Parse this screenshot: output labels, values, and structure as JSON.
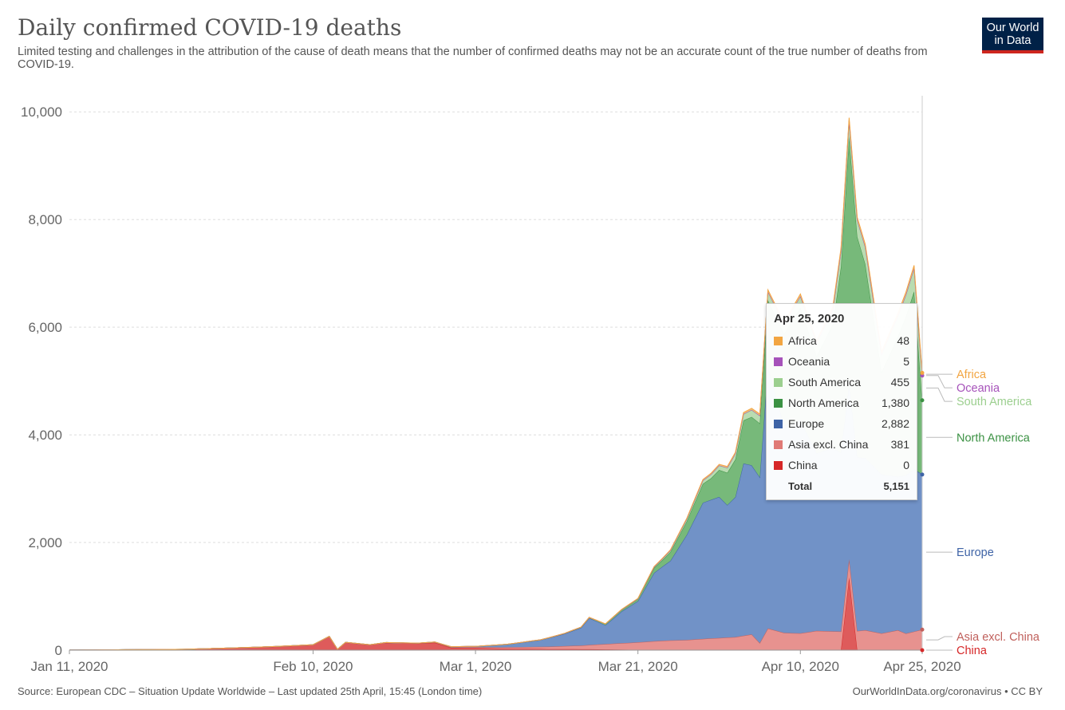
{
  "header": {
    "title": "Daily confirmed COVID-19 deaths",
    "subtitle": "Limited testing and challenges in the attribution of the cause of death means that the number of confirmed deaths may not be an accurate count of the true number of deaths from COVID-19.",
    "logo_line1": "Our World",
    "logo_line2": "in Data"
  },
  "footer": {
    "source": "Source: European CDC – Situation Update Worldwide – Last updated 25th April, 15:45 (London time)",
    "link": "OurWorldInData.org/coronavirus • CC BY"
  },
  "tooltip": {
    "date": "Apr 25, 2020",
    "rows": [
      {
        "name": "Africa",
        "value": "48",
        "color": "#f2a541"
      },
      {
        "name": "Oceania",
        "value": "5",
        "color": "#a652ba"
      },
      {
        "name": "South America",
        "value": "455",
        "color": "#9ccf8f"
      },
      {
        "name": "North America",
        "value": "1,380",
        "color": "#3b9143"
      },
      {
        "name": "Europe",
        "value": "2,882",
        "color": "#3e63a6"
      },
      {
        "name": "Asia excl. China",
        "value": "381",
        "color": "#e07a76"
      },
      {
        "name": "China",
        "value": "0",
        "color": "#d62728"
      }
    ],
    "total_label": "Total",
    "total_value": "5,151"
  },
  "chart_data": {
    "type": "area",
    "stacked": true,
    "title": "Daily confirmed COVID-19 deaths",
    "subtitle": "Limited testing and challenges in the attribution of the cause of death means that the number of confirmed deaths may not be an accurate count of the true number of deaths from COVID-19.",
    "x_start": "2020-01-11",
    "x_end": "2020-04-25",
    "x_ticks": [
      "Jan 11, 2020",
      "Feb 10, 2020",
      "Mar 1, 2020",
      "Mar 21, 2020",
      "Apr 10, 2020",
      "Apr 25, 2020"
    ],
    "y_ticks": [
      "0",
      "2,000",
      "4,000",
      "6,000",
      "8,000",
      "10,000"
    ],
    "ylim": [
      0,
      10300
    ],
    "grid": true,
    "legend": "right (labels at series ends)",
    "series": [
      {
        "name": "China",
        "color": "#d62728",
        "fill": "#de5b5b",
        "points": [
          [
            "2020-01-11",
            1
          ],
          [
            "2020-01-25",
            15
          ],
          [
            "2020-02-01",
            45
          ],
          [
            "2020-02-05",
            65
          ],
          [
            "2020-02-10",
            100
          ],
          [
            "2020-02-12",
            255
          ],
          [
            "2020-02-13",
            15
          ],
          [
            "2020-02-14",
            145
          ],
          [
            "2020-02-17",
            100
          ],
          [
            "2020-02-19",
            140
          ],
          [
            "2020-02-23",
            125
          ],
          [
            "2020-02-25",
            140
          ],
          [
            "2020-02-27",
            45
          ],
          [
            "2020-03-01",
            40
          ],
          [
            "2020-03-04",
            30
          ],
          [
            "2020-03-10",
            20
          ],
          [
            "2020-03-16",
            15
          ],
          [
            "2020-03-21",
            6
          ],
          [
            "2020-03-31",
            4
          ],
          [
            "2020-04-10",
            2
          ],
          [
            "2020-04-15",
            5
          ],
          [
            "2020-04-16",
            1350
          ],
          [
            "2020-04-17",
            1
          ],
          [
            "2020-04-25",
            0
          ]
        ]
      },
      {
        "name": "Asia excl. China",
        "color": "#c0605c",
        "fill": "#e7928f",
        "points": [
          [
            "2020-01-11",
            0
          ],
          [
            "2020-02-20",
            1
          ],
          [
            "2020-02-25",
            5
          ],
          [
            "2020-03-01",
            15
          ],
          [
            "2020-03-05",
            25
          ],
          [
            "2020-03-10",
            45
          ],
          [
            "2020-03-14",
            70
          ],
          [
            "2020-03-18",
            110
          ],
          [
            "2020-03-21",
            140
          ],
          [
            "2020-03-24",
            170
          ],
          [
            "2020-03-27",
            185
          ],
          [
            "2020-03-30",
            215
          ],
          [
            "2020-04-02",
            240
          ],
          [
            "2020-04-04",
            290
          ],
          [
            "2020-04-05",
            130
          ],
          [
            "2020-04-06",
            400
          ],
          [
            "2020-04-08",
            320
          ],
          [
            "2020-04-10",
            310
          ],
          [
            "2020-04-12",
            355
          ],
          [
            "2020-04-14",
            345
          ],
          [
            "2020-04-16",
            340
          ],
          [
            "2020-04-18",
            370
          ],
          [
            "2020-04-20",
            310
          ],
          [
            "2020-04-22",
            370
          ],
          [
            "2020-04-23",
            310
          ],
          [
            "2020-04-25",
            381
          ]
        ]
      },
      {
        "name": "Europe",
        "color": "#3e63a6",
        "fill": "#7192c7",
        "points": [
          [
            "2020-01-11",
            0
          ],
          [
            "2020-02-21",
            0
          ],
          [
            "2020-02-25",
            5
          ],
          [
            "2020-03-01",
            15
          ],
          [
            "2020-03-05",
            55
          ],
          [
            "2020-03-09",
            125
          ],
          [
            "2020-03-12",
            230
          ],
          [
            "2020-03-14",
            330
          ],
          [
            "2020-03-15",
            500
          ],
          [
            "2020-03-17",
            350
          ],
          [
            "2020-03-19",
            590
          ],
          [
            "2020-03-21",
            765
          ],
          [
            "2020-03-23",
            1270
          ],
          [
            "2020-03-25",
            1480
          ],
          [
            "2020-03-27",
            1950
          ],
          [
            "2020-03-29",
            2530
          ],
          [
            "2020-03-31",
            2620
          ],
          [
            "2020-04-01",
            2460
          ],
          [
            "2020-04-02",
            2600
          ],
          [
            "2020-04-03",
            3200
          ],
          [
            "2020-04-05",
            3080
          ],
          [
            "2020-04-06",
            4850
          ],
          [
            "2020-04-08",
            3850
          ],
          [
            "2020-04-10",
            3950
          ],
          [
            "2020-04-12",
            3300
          ],
          [
            "2020-04-14",
            3400
          ],
          [
            "2020-04-16",
            3250
          ],
          [
            "2020-04-18",
            3200
          ],
          [
            "2020-04-20",
            2950
          ],
          [
            "2020-04-22",
            2850
          ],
          [
            "2020-04-24",
            3020
          ],
          [
            "2020-04-25",
            2882
          ]
        ]
      },
      {
        "name": "North America",
        "color": "#3b9143",
        "fill": "#77b97a",
        "points": [
          [
            "2020-01-11",
            0
          ],
          [
            "2020-03-01",
            1
          ],
          [
            "2020-03-10",
            5
          ],
          [
            "2020-03-15",
            12
          ],
          [
            "2020-03-21",
            40
          ],
          [
            "2020-03-24",
            120
          ],
          [
            "2020-03-27",
            250
          ],
          [
            "2020-03-30",
            400
          ],
          [
            "2020-04-01",
            600
          ],
          [
            "2020-04-03",
            800
          ],
          [
            "2020-04-05",
            1000
          ],
          [
            "2020-04-06",
            1250
          ],
          [
            "2020-04-08",
            1700
          ],
          [
            "2020-04-10",
            2100
          ],
          [
            "2020-04-12",
            1800
          ],
          [
            "2020-04-14",
            2300
          ],
          [
            "2020-04-16",
            4600
          ],
          [
            "2020-04-18",
            3600
          ],
          [
            "2020-04-20",
            1900
          ],
          [
            "2020-04-22",
            2600
          ],
          [
            "2020-04-24",
            3300
          ],
          [
            "2020-04-25",
            1380
          ]
        ]
      },
      {
        "name": "South America",
        "color": "#9ccf8f",
        "fill": "#b9dcb1",
        "points": [
          [
            "2020-01-11",
            0
          ],
          [
            "2020-03-15",
            0
          ],
          [
            "2020-03-21",
            5
          ],
          [
            "2020-03-27",
            40
          ],
          [
            "2020-04-01",
            90
          ],
          [
            "2020-04-05",
            140
          ],
          [
            "2020-04-10",
            210
          ],
          [
            "2020-04-15",
            290
          ],
          [
            "2020-04-20",
            330
          ],
          [
            "2020-04-25",
            455
          ]
        ]
      },
      {
        "name": "Oceania",
        "color": "#a652ba",
        "fill": "#c58bd2",
        "points": [
          [
            "2020-01-11",
            0
          ],
          [
            "2020-03-20",
            1
          ],
          [
            "2020-04-01",
            5
          ],
          [
            "2020-04-25",
            5
          ]
        ]
      },
      {
        "name": "Africa",
        "color": "#f2a541",
        "fill": "#f5c27a",
        "points": [
          [
            "2020-01-11",
            0
          ],
          [
            "2020-03-15",
            0
          ],
          [
            "2020-03-25",
            10
          ],
          [
            "2020-04-05",
            30
          ],
          [
            "2020-04-15",
            50
          ],
          [
            "2020-04-25",
            48
          ]
        ]
      }
    ]
  }
}
